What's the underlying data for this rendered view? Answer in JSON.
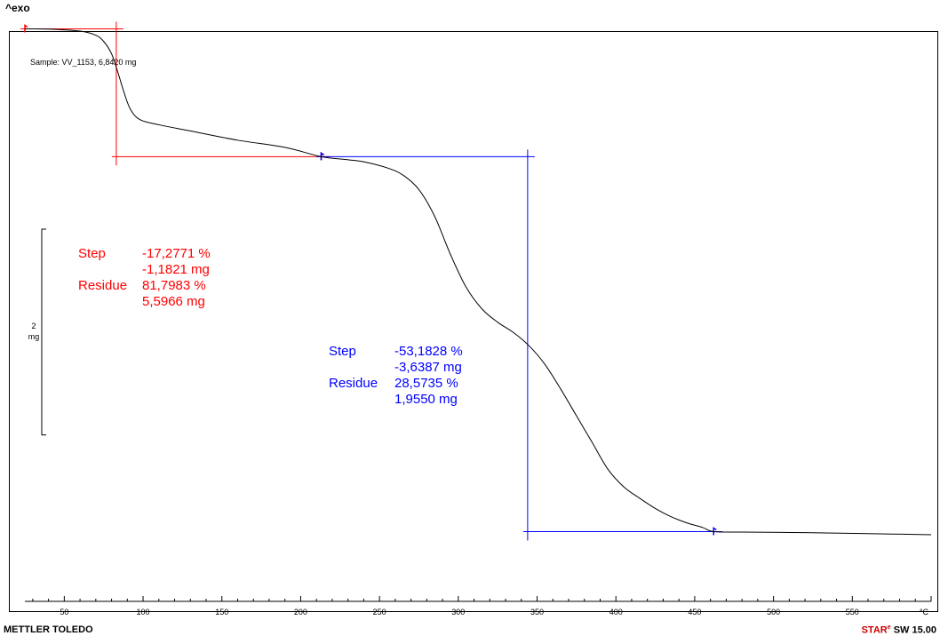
{
  "header": {
    "exo_label": "^exo"
  },
  "footer": {
    "brand": "METTLER TOLEDO",
    "software_star": "STAR",
    "software_sup": "e",
    "software_version": " SW 15.00"
  },
  "colors": {
    "curve": "#000000",
    "step1": "#ff0000",
    "step2": "#0000ff",
    "axis": "#000000"
  },
  "chart_data": {
    "type": "line",
    "title": "",
    "sample_label": "Sample: VV_1153, 6,8420 mg",
    "xlabel": "",
    "x_unit": "°C",
    "ylabel": "",
    "xlim": [
      25,
      600
    ],
    "ylim": [
      1.7,
      6.95
    ],
    "x_ticks": [
      50,
      100,
      150,
      200,
      250,
      300,
      350,
      400,
      450,
      500,
      550
    ],
    "x_tick_labels": [
      "50",
      "100",
      "150",
      "200",
      "250",
      "300",
      "350",
      "400",
      "450",
      "500",
      "550"
    ],
    "scale_bar": {
      "value_mg": 2,
      "label_value": "2",
      "label_unit": "mg"
    },
    "series": [
      {
        "name": "",
        "x": [
          25,
          40,
          60,
          70,
          75,
          80,
          84,
          88,
          92,
          98,
          110,
          130,
          160,
          190,
          213,
          230,
          240,
          255,
          265,
          275,
          285,
          295,
          305,
          315,
          325,
          335,
          345,
          355,
          365,
          375,
          385,
          395,
          405,
          415,
          425,
          435,
          445,
          455,
          462,
          480,
          520,
          560,
          600
        ],
        "y": [
          6.842,
          6.84,
          6.82,
          6.78,
          6.72,
          6.6,
          6.42,
          6.22,
          6.06,
          5.96,
          5.91,
          5.85,
          5.76,
          5.69,
          5.6,
          5.57,
          5.55,
          5.49,
          5.42,
          5.28,
          5.02,
          4.65,
          4.33,
          4.12,
          3.99,
          3.89,
          3.76,
          3.58,
          3.34,
          3.08,
          2.82,
          2.56,
          2.39,
          2.28,
          2.18,
          2.1,
          2.04,
          1.995,
          1.955,
          1.95,
          1.945,
          1.935,
          1.925
        ]
      }
    ],
    "evaluations": [
      {
        "color_key": "step1",
        "step_label": "Step",
        "step_percent": "-17,2771 %",
        "step_mg": "-1,1821 mg",
        "residue_label": "Residue",
        "residue_percent": "81,7983 %",
        "residue_mg": "5,5966 mg",
        "start_x": 25,
        "end_x": 213,
        "start_y": 6.842,
        "end_y": 5.6,
        "inflection_x": 83,
        "upper_level": 6.842,
        "lower_level": 5.6
      },
      {
        "color_key": "step2",
        "step_label": "Step",
        "step_percent": "-53,1828 %",
        "step_mg": "-3,6387 mg",
        "residue_label": "Residue",
        "residue_percent": "28,5735 %",
        "residue_mg": "1,9550 mg",
        "start_x": 213,
        "end_x": 462,
        "start_y": 5.6,
        "end_y": 1.955,
        "inflection_x": 344,
        "upper_level": 5.6,
        "lower_level": 1.955
      }
    ]
  }
}
